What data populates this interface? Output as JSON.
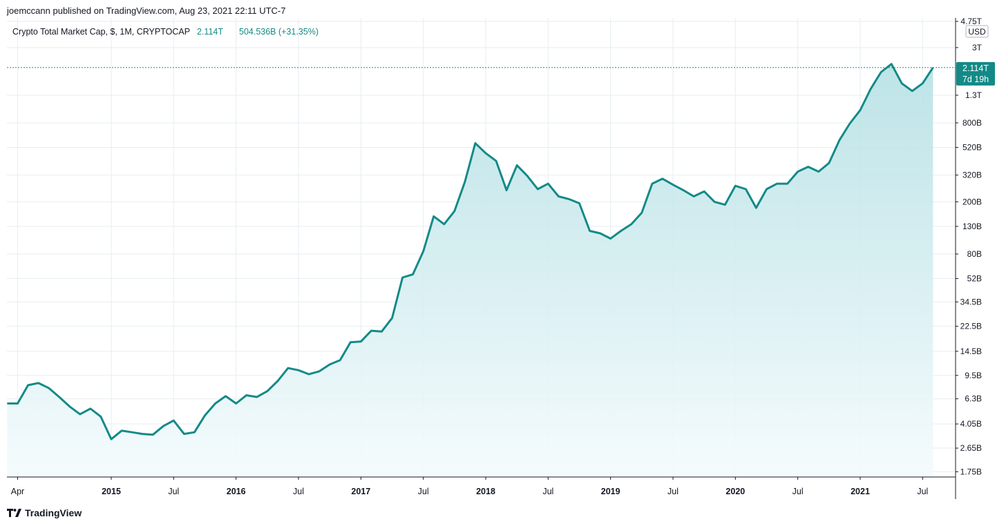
{
  "header": {
    "published": "joemccann published on TradingView.com, Aug 23, 2021 22:11 UTC-7"
  },
  "footer": {
    "brand": "TradingView",
    "logo_icon": "tradingview-logo-icon"
  },
  "colors": {
    "line": "#138a87",
    "fill_top": "#b2dfe3",
    "fill_bottom": "#f4fbfd",
    "grid": "#e6eef0",
    "badge": "#138a87"
  },
  "chart_data": {
    "type": "area",
    "title": "Crypto Total Market Cap, $, 1M, CRYPTOCAP",
    "last_value_label": "2.114T",
    "change_label": "504.536B (+31.35%)",
    "currency_badge": "USD",
    "price_badge": {
      "value": "2.114T",
      "countdown": "7d 19h"
    },
    "y_scale": "log",
    "ylim": [
      1500000000.0,
      4900000000000.0
    ],
    "y_ticks": [
      {
        "label": "4.75T",
        "value": 4750000000000.0
      },
      {
        "label": "3T",
        "value": 3000000000000.0
      },
      {
        "label": "1.3T",
        "value": 1300000000000.0
      },
      {
        "label": "800B",
        "value": 800000000000.0
      },
      {
        "label": "520B",
        "value": 520000000000.0
      },
      {
        "label": "320B",
        "value": 320000000000.0
      },
      {
        "label": "200B",
        "value": 200000000000.0
      },
      {
        "label": "130B",
        "value": 130000000000.0
      },
      {
        "label": "80B",
        "value": 80000000000.0
      },
      {
        "label": "52B",
        "value": 52000000000.0
      },
      {
        "label": "34.5B",
        "value": 34500000000.0
      },
      {
        "label": "22.5B",
        "value": 22500000000.0
      },
      {
        "label": "14.5B",
        "value": 14500000000.0
      },
      {
        "label": "9.5B",
        "value": 9500000000.0
      },
      {
        "label": "6.3B",
        "value": 6300000000.0
      },
      {
        "label": "4.05B",
        "value": 4050000000.0
      },
      {
        "label": "2.65B",
        "value": 2650000000.0
      },
      {
        "label": "1.75B",
        "value": 1750000000.0
      }
    ],
    "x_ticks": [
      {
        "label": "Apr",
        "date": "2014-04",
        "bold": false
      },
      {
        "label": "2015",
        "date": "2015-01",
        "bold": true
      },
      {
        "label": "Jul",
        "date": "2015-07",
        "bold": false
      },
      {
        "label": "2016",
        "date": "2016-01",
        "bold": true
      },
      {
        "label": "Jul",
        "date": "2016-07",
        "bold": false
      },
      {
        "label": "2017",
        "date": "2017-01",
        "bold": true
      },
      {
        "label": "Jul",
        "date": "2017-07",
        "bold": false
      },
      {
        "label": "2018",
        "date": "2018-01",
        "bold": true
      },
      {
        "label": "Jul",
        "date": "2018-07",
        "bold": false
      },
      {
        "label": "2019",
        "date": "2019-01",
        "bold": true
      },
      {
        "label": "Jul",
        "date": "2019-07",
        "bold": false
      },
      {
        "label": "2020",
        "date": "2020-01",
        "bold": true
      },
      {
        "label": "Jul",
        "date": "2020-07",
        "bold": false
      },
      {
        "label": "2021",
        "date": "2021-01",
        "bold": true
      },
      {
        "label": "Jul",
        "date": "2021-07",
        "bold": false
      }
    ],
    "series": [
      {
        "x": [
          "2014-03",
          "2014-04",
          "2014-05",
          "2014-06",
          "2014-07",
          "2014-08",
          "2014-09",
          "2014-10",
          "2014-11",
          "2014-12",
          "2015-01",
          "2015-02",
          "2015-03",
          "2015-04",
          "2015-05",
          "2015-06",
          "2015-07",
          "2015-08",
          "2015-09",
          "2015-10",
          "2015-11",
          "2015-12",
          "2016-01",
          "2016-02",
          "2016-03",
          "2016-04",
          "2016-05",
          "2016-06",
          "2016-07",
          "2016-08",
          "2016-09",
          "2016-10",
          "2016-11",
          "2016-12",
          "2017-01",
          "2017-02",
          "2017-03",
          "2017-04",
          "2017-05",
          "2017-06",
          "2017-07",
          "2017-08",
          "2017-09",
          "2017-10",
          "2017-11",
          "2017-12",
          "2018-01",
          "2018-02",
          "2018-03",
          "2018-04",
          "2018-05",
          "2018-06",
          "2018-07",
          "2018-08",
          "2018-09",
          "2018-10",
          "2018-11",
          "2018-12",
          "2019-01",
          "2019-02",
          "2019-03",
          "2019-04",
          "2019-05",
          "2019-06",
          "2019-07",
          "2019-08",
          "2019-09",
          "2019-10",
          "2019-11",
          "2019-12",
          "2020-01",
          "2020-02",
          "2020-03",
          "2020-04",
          "2020-05",
          "2020-06",
          "2020-07",
          "2020-08",
          "2020-09",
          "2020-10",
          "2020-11",
          "2020-12",
          "2021-01",
          "2021-02",
          "2021-03",
          "2021-04",
          "2021-05",
          "2021-06",
          "2021-07",
          "2021-08"
        ],
        "values": [
          5800000000.0,
          5800000000.0,
          8000000000.0,
          8300000000.0,
          7600000000.0,
          6500000000.0,
          5500000000.0,
          4800000000.0,
          5300000000.0,
          4600000000.0,
          3100000000.0,
          3600000000.0,
          3500000000.0,
          3400000000.0,
          3350000000.0,
          3900000000.0,
          4300000000.0,
          3400000000.0,
          3500000000.0,
          4700000000.0,
          5800000000.0,
          6600000000.0,
          5800000000.0,
          6700000000.0,
          6500000000.0,
          7200000000.0,
          8600000000.0,
          10800000000.0,
          10400000000.0,
          9700000000.0,
          10200000000.0,
          11500000000.0,
          12400000000.0,
          17000000000.0,
          17200000000.0,
          20800000000.0,
          20500000000.0,
          26000000000.0,
          53000000000.0,
          56000000000.0,
          84000000000.0,
          155000000000.0,
          135000000000.0,
          170000000000.0,
          285000000000.0,
          560000000000.0,
          470000000000.0,
          410000000000.0,
          245000000000.0,
          380000000000.0,
          315000000000.0,
          250000000000.0,
          275000000000.0,
          220000000000.0,
          210000000000.0,
          195000000000.0,
          120000000000.0,
          115000000000.0,
          105000000000.0,
          120000000000.0,
          135000000000.0,
          165000000000.0,
          275000000000.0,
          300000000000.0,
          270000000000.0,
          245000000000.0,
          220000000000.0,
          240000000000.0,
          200000000000.0,
          190000000000.0,
          265000000000.0,
          250000000000.0,
          180000000000.0,
          250000000000.0,
          275000000000.0,
          275000000000.0,
          340000000000.0,
          370000000000.0,
          340000000000.0,
          395000000000.0,
          590000000000.0,
          790000000000.0,
          1000000000000.0,
          1450000000000.0,
          1950000000000.0,
          2250000000000.0,
          1600000000000.0,
          1400000000000.0,
          1600000000000.0,
          2114000000000.0
        ]
      }
    ]
  }
}
